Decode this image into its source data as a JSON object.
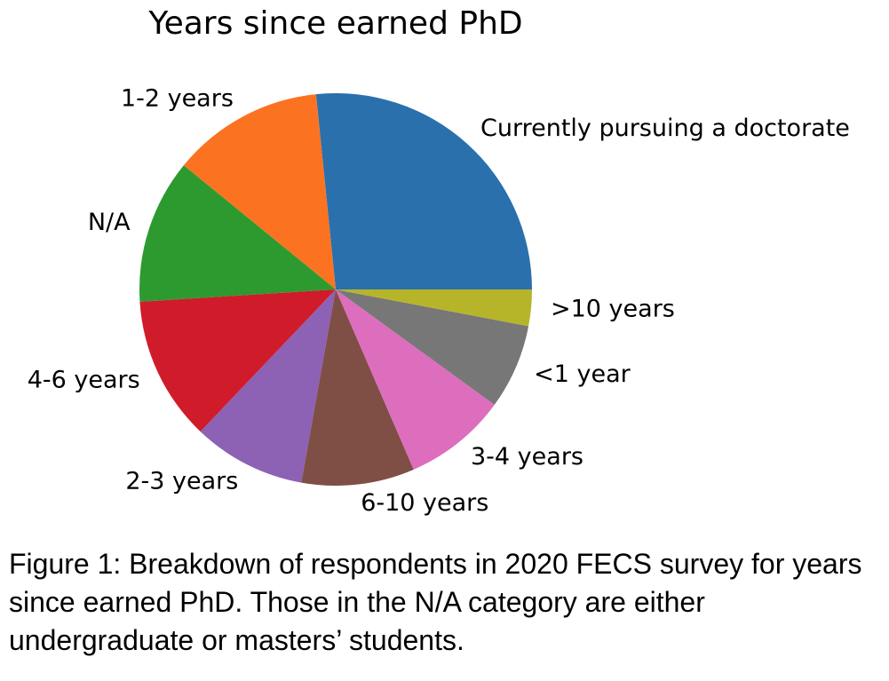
{
  "chart_data": {
    "type": "pie",
    "title": "Years since earned PhD",
    "slices": [
      {
        "label": "Currently pursuing a doctorate",
        "value": 26.6,
        "color": "#2a70ad"
      },
      {
        "label": "1-2 years",
        "value": 12.5,
        "color": "#fb7321"
      },
      {
        "label": "N/A",
        "value": 11.9,
        "color": "#2d9a2f"
      },
      {
        "label": "4-6 years",
        "value": 11.9,
        "color": "#d01b2a"
      },
      {
        "label": "2-3 years",
        "value": 9.3,
        "color": "#8d61b4"
      },
      {
        "label": "6-10 years",
        "value": 9.3,
        "color": "#7f4e45"
      },
      {
        "label": "3-4 years",
        "value": 8.5,
        "color": "#dd6ebd"
      },
      {
        "label": "<1 year",
        "value": 7.0,
        "color": "#777777"
      },
      {
        "label": ">10 years",
        "value": 3.0,
        "color": "#b6b52a"
      }
    ],
    "start_angle_deg": 0,
    "direction": "counterclockwise"
  },
  "caption": "Figure 1: Breakdown of respondents in 2020 FECS survey for years since earned PhD.  Those in the N/A category are either undergraduate or masters’ students."
}
